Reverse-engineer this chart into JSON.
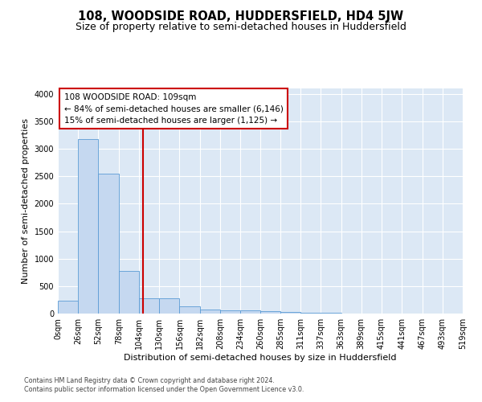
{
  "title": "108, WOODSIDE ROAD, HUDDERSFIELD, HD4 5JW",
  "subtitle": "Size of property relative to semi-detached houses in Huddersfield",
  "xlabel": "Distribution of semi-detached houses by size in Huddersfield",
  "ylabel": "Number of semi-detached properties",
  "footer1": "Contains HM Land Registry data © Crown copyright and database right 2024.",
  "footer2": "Contains public sector information licensed under the Open Government Licence v3.0.",
  "bar_edges": [
    0,
    26,
    52,
    78,
    104,
    130,
    156,
    182,
    208,
    234,
    260,
    285,
    311,
    337,
    363,
    389,
    415,
    441,
    467,
    493,
    519
  ],
  "bar_heights": [
    230,
    3175,
    2550,
    780,
    285,
    275,
    125,
    80,
    60,
    55,
    40,
    30,
    20,
    10,
    5,
    3,
    2,
    1,
    1,
    0
  ],
  "bar_color": "#c5d8f0",
  "bar_edge_color": "#5b9bd5",
  "property_size": 109,
  "property_label": "108 WOODSIDE ROAD: 109sqm",
  "smaller_pct": "84%",
  "smaller_n": "6,146",
  "larger_pct": "15%",
  "larger_n": "1,125",
  "vline_color": "#cc0000",
  "annotation_box_color": "#cc0000",
  "ylim": [
    0,
    4100
  ],
  "yticks": [
    0,
    500,
    1000,
    1500,
    2000,
    2500,
    3000,
    3500,
    4000
  ],
  "bg_color": "#dce8f5",
  "grid_color": "#ffffff",
  "title_fontsize": 10.5,
  "subtitle_fontsize": 9,
  "axis_label_fontsize": 8,
  "tick_fontsize": 7,
  "annotation_fontsize": 7.5
}
